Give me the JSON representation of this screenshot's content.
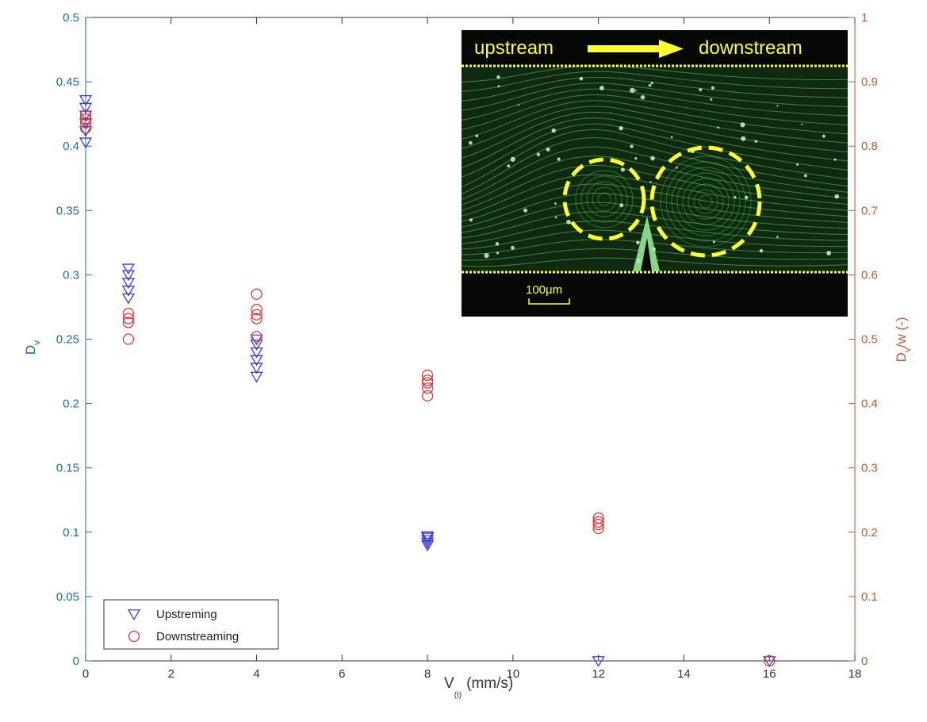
{
  "chart_data": {
    "type": "scatter",
    "xlabel_main": "V",
    "xlabel_sub": "(t)",
    "xlabel_unit": "(mm/s)",
    "ylabel_left_main": "D",
    "ylabel_left_sub": "v",
    "ylabel_right_main": "D",
    "ylabel_right_sub": "v",
    "ylabel_right_rest": "/w (-)",
    "xlim": [
      0,
      18
    ],
    "ylim_left": [
      0,
      0.5
    ],
    "ylim_right": [
      0,
      1
    ],
    "x_ticks": [
      "0",
      "2",
      "4",
      "6",
      "8",
      "10",
      "12",
      "14",
      "16",
      "18"
    ],
    "y_left_ticks": [
      "0",
      "0.05",
      "0.1",
      "0.15",
      "0.2",
      "0.25",
      "0.3",
      "0.35",
      "0.4",
      "0.45",
      "0.5"
    ],
    "y_right_ticks": [
      "0",
      "0.1",
      "0.2",
      "0.3",
      "0.4",
      "0.5",
      "0.6",
      "0.7",
      "0.8",
      "0.9",
      "1"
    ],
    "legend_position": "bottom-left",
    "grid": false,
    "series": [
      {
        "name": "Upstreming",
        "marker": "triangle-down",
        "color": "#3b3bd6",
        "points": [
          [
            0,
            0.403
          ],
          [
            0,
            0.412
          ],
          [
            0,
            0.418
          ],
          [
            0,
            0.424
          ],
          [
            0,
            0.43
          ],
          [
            0,
            0.436
          ],
          [
            1,
            0.282
          ],
          [
            1,
            0.288
          ],
          [
            1,
            0.294
          ],
          [
            1,
            0.3
          ],
          [
            1,
            0.305
          ],
          [
            4,
            0.221
          ],
          [
            4,
            0.228
          ],
          [
            4,
            0.234
          ],
          [
            4,
            0.24
          ],
          [
            4,
            0.246
          ],
          [
            4,
            0.25
          ],
          [
            8,
            0.09
          ],
          [
            8,
            0.092
          ],
          [
            8,
            0.094
          ],
          [
            8,
            0.096
          ],
          [
            8,
            0.097
          ],
          [
            12,
            0.0
          ],
          [
            16,
            0.0
          ]
        ]
      },
      {
        "name": "Downstreaming",
        "marker": "circle",
        "color": "#e03c3c",
        "points": [
          [
            0,
            0.414
          ],
          [
            0,
            0.418
          ],
          [
            0,
            0.421
          ],
          [
            0,
            0.424
          ],
          [
            1,
            0.25
          ],
          [
            1,
            0.263
          ],
          [
            1,
            0.266
          ],
          [
            1,
            0.27
          ],
          [
            4,
            0.252
          ],
          [
            4,
            0.266
          ],
          [
            4,
            0.269
          ],
          [
            4,
            0.273
          ],
          [
            4,
            0.285
          ],
          [
            8,
            0.206
          ],
          [
            8,
            0.212
          ],
          [
            8,
            0.216
          ],
          [
            8,
            0.218
          ],
          [
            8,
            0.222
          ],
          [
            12,
            0.103
          ],
          [
            12,
            0.106
          ],
          [
            12,
            0.108
          ],
          [
            12,
            0.111
          ],
          [
            16,
            0.0
          ]
        ]
      }
    ],
    "inset": {
      "label_left": "upstream",
      "label_right": "downstream",
      "scale_bar": "100μm",
      "accent": "#ffff33",
      "background": "#050805",
      "streamline_color": "#5fd35f"
    }
  }
}
